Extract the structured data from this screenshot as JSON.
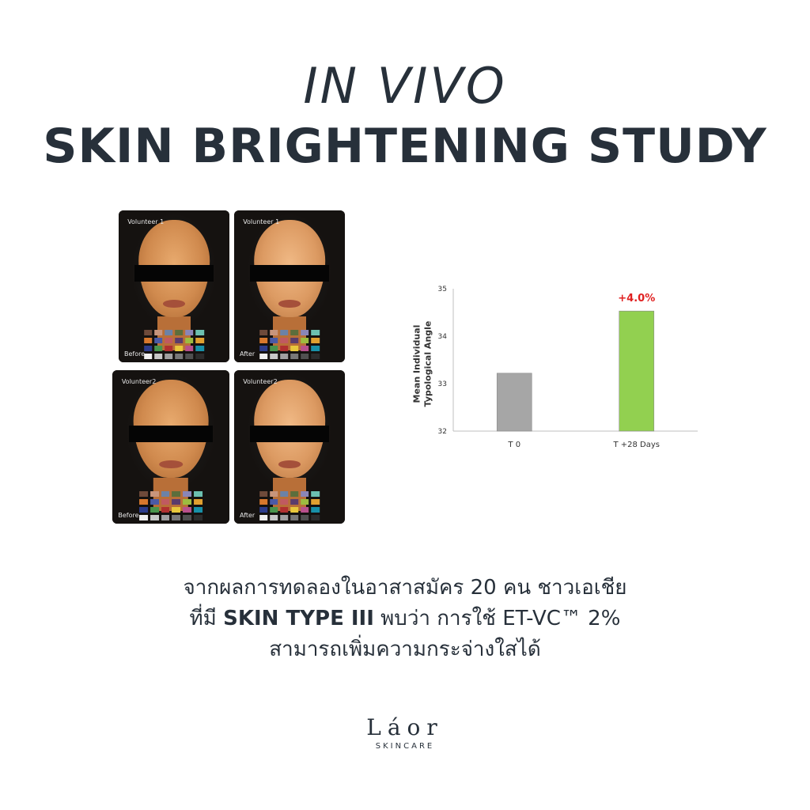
{
  "title": {
    "line1": "IN VIVO",
    "line2": "SKIN BRIGHTENING STUDY"
  },
  "photos": [
    {
      "volunteer": "Volunteer 1",
      "stage": "Before"
    },
    {
      "volunteer": "Volunteer 1",
      "stage": "After"
    },
    {
      "volunteer": "Volunteer2",
      "stage": "Before"
    },
    {
      "volunteer": "Volunteer2",
      "stage": "After"
    }
  ],
  "colors": {
    "bar_t0": "#a6a6a6",
    "bar_t28": "#92d050",
    "annotation": "#e02020",
    "text": "#27303a"
  },
  "chart_data": {
    "type": "bar",
    "categories": [
      "T 0",
      "T +28 Days"
    ],
    "values": [
      33.22,
      34.53
    ],
    "ylabel_line1": "Mean Individual",
    "ylabel_line2": "Typological Angle",
    "ylim": [
      32,
      35
    ],
    "yticks": [
      "32",
      "33",
      "34",
      "35"
    ],
    "annotation": "+4.0%",
    "grid": false
  },
  "text": {
    "line1": "จากผลการทดลองในอาสาสมัคร 20 คน ชาวเอเชีย",
    "line2_pre": "ที่มี ",
    "line2_bold": "SKIN TYPE III",
    "line2_post": " พบว่า การใช้ ET-VC™ 2%",
    "line3": "สามารถเพิ่มความกระจ่างใสได้"
  },
  "logo": {
    "word": "Láor",
    "sub": "SKINCARE"
  }
}
